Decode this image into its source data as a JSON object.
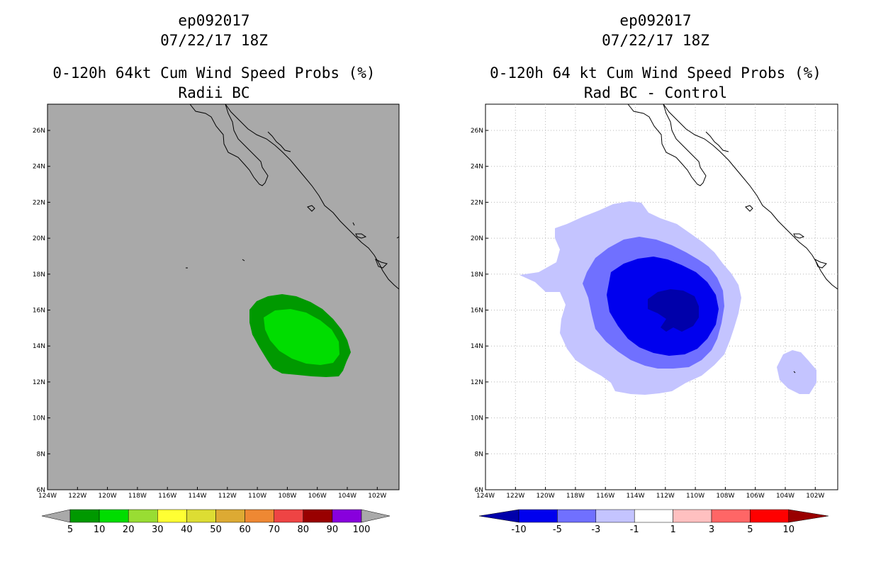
{
  "left": {
    "storm_id": "ep092017",
    "datetime": "07/22/17 18Z",
    "title": "0-120h 64kt Cum Wind Speed Probs (%)",
    "subtitle": "Radii BC",
    "colorbar": {
      "labels": [
        "5",
        "10",
        "20",
        "30",
        "40",
        "50",
        "60",
        "70",
        "80",
        "90",
        "100"
      ],
      "colors": [
        "#009900",
        "#00dd00",
        "#99dd33",
        "#ffff33",
        "#dddd33",
        "#ddaa33",
        "#ee8833",
        "#ee4444",
        "#990000",
        "#8800dd"
      ]
    },
    "background": "#a9a9a9"
  },
  "right": {
    "storm_id": "ep092017",
    "datetime": "07/22/17 18Z",
    "title": "0-120h 64 kt Cum Wind Speed Probs (%)",
    "subtitle": "Rad BC - Control",
    "colorbar": {
      "labels": [
        "-10",
        "-5",
        "-3",
        "-1",
        "1",
        "3",
        "5",
        "10"
      ],
      "colors": [
        "#0000aa",
        "#0000ee",
        "#7070ff",
        "#c4c4ff",
        "#ffffff",
        "#ffc0c0",
        "#ff6666",
        "#ff0000",
        "#990000"
      ]
    },
    "background": "#ffffff"
  },
  "axes": {
    "lat_labels": [
      "6N",
      "8N",
      "10N",
      "12N",
      "14N",
      "16N",
      "18N",
      "20N",
      "22N",
      "24N",
      "26N"
    ],
    "lon_labels": [
      "124W",
      "122W",
      "120W",
      "118W",
      "116W",
      "114W",
      "112W",
      "110W",
      "108W",
      "106W",
      "104W",
      "102W"
    ]
  }
}
